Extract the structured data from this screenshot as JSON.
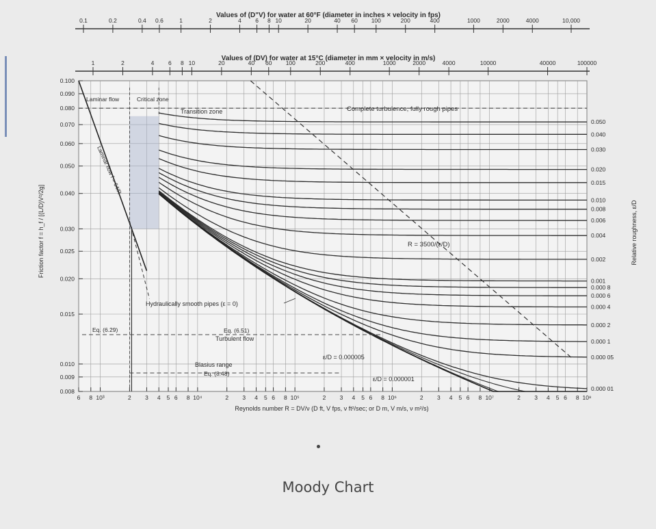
{
  "page": {
    "caption": "Moody Chart"
  },
  "chart_data": {
    "type": "line",
    "title": "",
    "top_axis_1": {
      "label": "Values of (D\"V) for water at 60°F (diameter in inches × velocity in fps)",
      "ticks": [
        {
          "label": "0.1",
          "x": 0.1
        },
        {
          "label": "0.2",
          "x": 0.2
        },
        {
          "label": "0.4",
          "x": 0.4
        },
        {
          "label": "0.6",
          "x": 0.6
        },
        {
          "label": "1",
          "x": 1
        },
        {
          "label": "2",
          "x": 2
        },
        {
          "label": "4",
          "x": 4
        },
        {
          "label": "6",
          "x": 6
        },
        {
          "label": "8",
          "x": 8
        },
        {
          "label": "10",
          "x": 10
        },
        {
          "label": "20",
          "x": 20
        },
        {
          "label": "40",
          "x": 40
        },
        {
          "label": "60",
          "x": 60
        },
        {
          "label": "100",
          "x": 100
        },
        {
          "label": "200",
          "x": 200
        },
        {
          "label": "400",
          "x": 400
        },
        {
          "label": "1000",
          "x": 1000
        },
        {
          "label": "2000",
          "x": 2000
        },
        {
          "label": "4000",
          "x": 4000
        },
        {
          "label": "10,000",
          "x": 10000
        }
      ]
    },
    "top_axis_2": {
      "label": "Values of (DV) for water at 15°C (diameter in mm × velocity in m/s)",
      "ticks": [
        {
          "label": "1",
          "x": 1
        },
        {
          "label": "2",
          "x": 2
        },
        {
          "label": "4",
          "x": 4
        },
        {
          "label": "6",
          "x": 6
        },
        {
          "label": "8",
          "x": 8
        },
        {
          "label": "10",
          "x": 10
        },
        {
          "label": "20",
          "x": 20
        },
        {
          "label": "40",
          "x": 40
        },
        {
          "label": "60",
          "x": 60
        },
        {
          "label": "100",
          "x": 100
        },
        {
          "label": "200",
          "x": 200
        },
        {
          "label": "400",
          "x": 400
        },
        {
          "label": "1000",
          "x": 1000
        },
        {
          "label": "2000",
          "x": 2000
        },
        {
          "label": "4000",
          "x": 4000
        },
        {
          "label": "10000",
          "x": 10000
        },
        {
          "label": "40000",
          "x": 40000
        },
        {
          "label": "100000",
          "x": 100000
        }
      ]
    },
    "xlabel": "Reynolds number R = DV/ν (D ft, V fps, ν ft²/sec; or D m, V m/s, ν m²/s)",
    "xscale": "log",
    "xlim": [
      600,
      100000000
    ],
    "x_ticks": [
      {
        "label": "6",
        "x": 600
      },
      {
        "label": "8",
        "x": 800
      },
      {
        "label": "10³",
        "x": 1000
      },
      {
        "label": "2",
        "x": 2000
      },
      {
        "label": "3",
        "x": 3000
      },
      {
        "label": "4",
        "x": 4000
      },
      {
        "label": "5",
        "x": 5000
      },
      {
        "label": "6",
        "x": 6000
      },
      {
        "label": "8",
        "x": 8000
      },
      {
        "label": "10⁴",
        "x": 10000
      },
      {
        "label": "2",
        "x": 20000
      },
      {
        "label": "3",
        "x": 30000
      },
      {
        "label": "4",
        "x": 40000
      },
      {
        "label": "5",
        "x": 50000
      },
      {
        "label": "6",
        "x": 60000
      },
      {
        "label": "8",
        "x": 80000
      },
      {
        "label": "10⁵",
        "x": 100000
      },
      {
        "label": "2",
        "x": 200000
      },
      {
        "label": "3",
        "x": 300000
      },
      {
        "label": "4",
        "x": 400000
      },
      {
        "label": "5",
        "x": 500000
      },
      {
        "label": "6",
        "x": 600000
      },
      {
        "label": "8",
        "x": 800000
      },
      {
        "label": "10⁶",
        "x": 1000000
      },
      {
        "label": "2",
        "x": 2000000
      },
      {
        "label": "3",
        "x": 3000000
      },
      {
        "label": "4",
        "x": 4000000
      },
      {
        "label": "5",
        "x": 5000000
      },
      {
        "label": "6",
        "x": 6000000
      },
      {
        "label": "8",
        "x": 8000000
      },
      {
        "label": "10⁷",
        "x": 10000000
      },
      {
        "label": "2",
        "x": 20000000
      },
      {
        "label": "3",
        "x": 30000000
      },
      {
        "label": "4",
        "x": 40000000
      },
      {
        "label": "5",
        "x": 50000000
      },
      {
        "label": "6",
        "x": 60000000
      },
      {
        "label": "8",
        "x": 80000000
      },
      {
        "label": "10⁸",
        "x": 100000000
      }
    ],
    "ylabel": "Friction factor f = h_f / [(L/D)V²/2g]",
    "yscale": "log",
    "ylim": [
      0.008,
      0.1
    ],
    "y_ticks": [
      {
        "label": "0.100",
        "y": 0.1
      },
      {
        "label": "0.090",
        "y": 0.09
      },
      {
        "label": "0.080",
        "y": 0.08
      },
      {
        "label": "0.070",
        "y": 0.07
      },
      {
        "label": "0.060",
        "y": 0.06
      },
      {
        "label": "0.050",
        "y": 0.05
      },
      {
        "label": "0.040",
        "y": 0.04
      },
      {
        "label": "0.030",
        "y": 0.03
      },
      {
        "label": "0.025",
        "y": 0.025
      },
      {
        "label": "0.020",
        "y": 0.02
      },
      {
        "label": "0.015",
        "y": 0.015
      },
      {
        "label": "0.010",
        "y": 0.01
      },
      {
        "label": "0.009",
        "y": 0.009
      },
      {
        "label": "0.008",
        "y": 0.008
      }
    ],
    "right_axis_label": "Relative roughness, ε/D",
    "roughness_series": [
      {
        "label": "0.050",
        "e": 0.05
      },
      {
        "label": "0.040",
        "e": 0.04
      },
      {
        "label": "0.030",
        "e": 0.03
      },
      {
        "label": "0.020",
        "e": 0.02
      },
      {
        "label": "0.015",
        "e": 0.015
      },
      {
        "label": "0.010",
        "e": 0.01
      },
      {
        "label": "0.008",
        "e": 0.008
      },
      {
        "label": "0.006",
        "e": 0.006
      },
      {
        "label": "0.004",
        "e": 0.004
      },
      {
        "label": "0.002",
        "e": 0.002
      },
      {
        "label": "0.001",
        "e": 0.001
      },
      {
        "label": "0.000 8",
        "e": 0.0008
      },
      {
        "label": "0.000 6",
        "e": 0.0006
      },
      {
        "label": "0.000 4",
        "e": 0.0004
      },
      {
        "label": "0.000 2",
        "e": 0.0002
      },
      {
        "label": "0.000 1",
        "e": 0.0001
      },
      {
        "label": "0.000 05",
        "e": 5e-05
      },
      {
        "label": "0.000 01",
        "e": 1e-05
      }
    ],
    "extra_curves": [
      {
        "label": "ε/D = 0.000005",
        "e": 5e-06
      },
      {
        "label": "ε/D = 0.000001",
        "e": 1e-06
      }
    ],
    "laminar": {
      "label": "Laminar flow f = 64/R",
      "R_range": [
        600,
        3000
      ]
    },
    "smooth_label": "Hydraulically smooth pipes (ε = 0)",
    "boundary_label": "R = 3500/(ε/D)",
    "zones": {
      "laminar": "Laminar flow",
      "critical": "Critical zone",
      "transition": "Transition zone",
      "complete": "Complete turbulence, fully rough pipes"
    },
    "annotations": {
      "eq629": "Eq. (6.29)",
      "eq651": "Eq. (6.51)",
      "turbulent": "Turbulent flow",
      "blasius": "Blasius range",
      "eq648": "Eq. (8.48)"
    }
  }
}
